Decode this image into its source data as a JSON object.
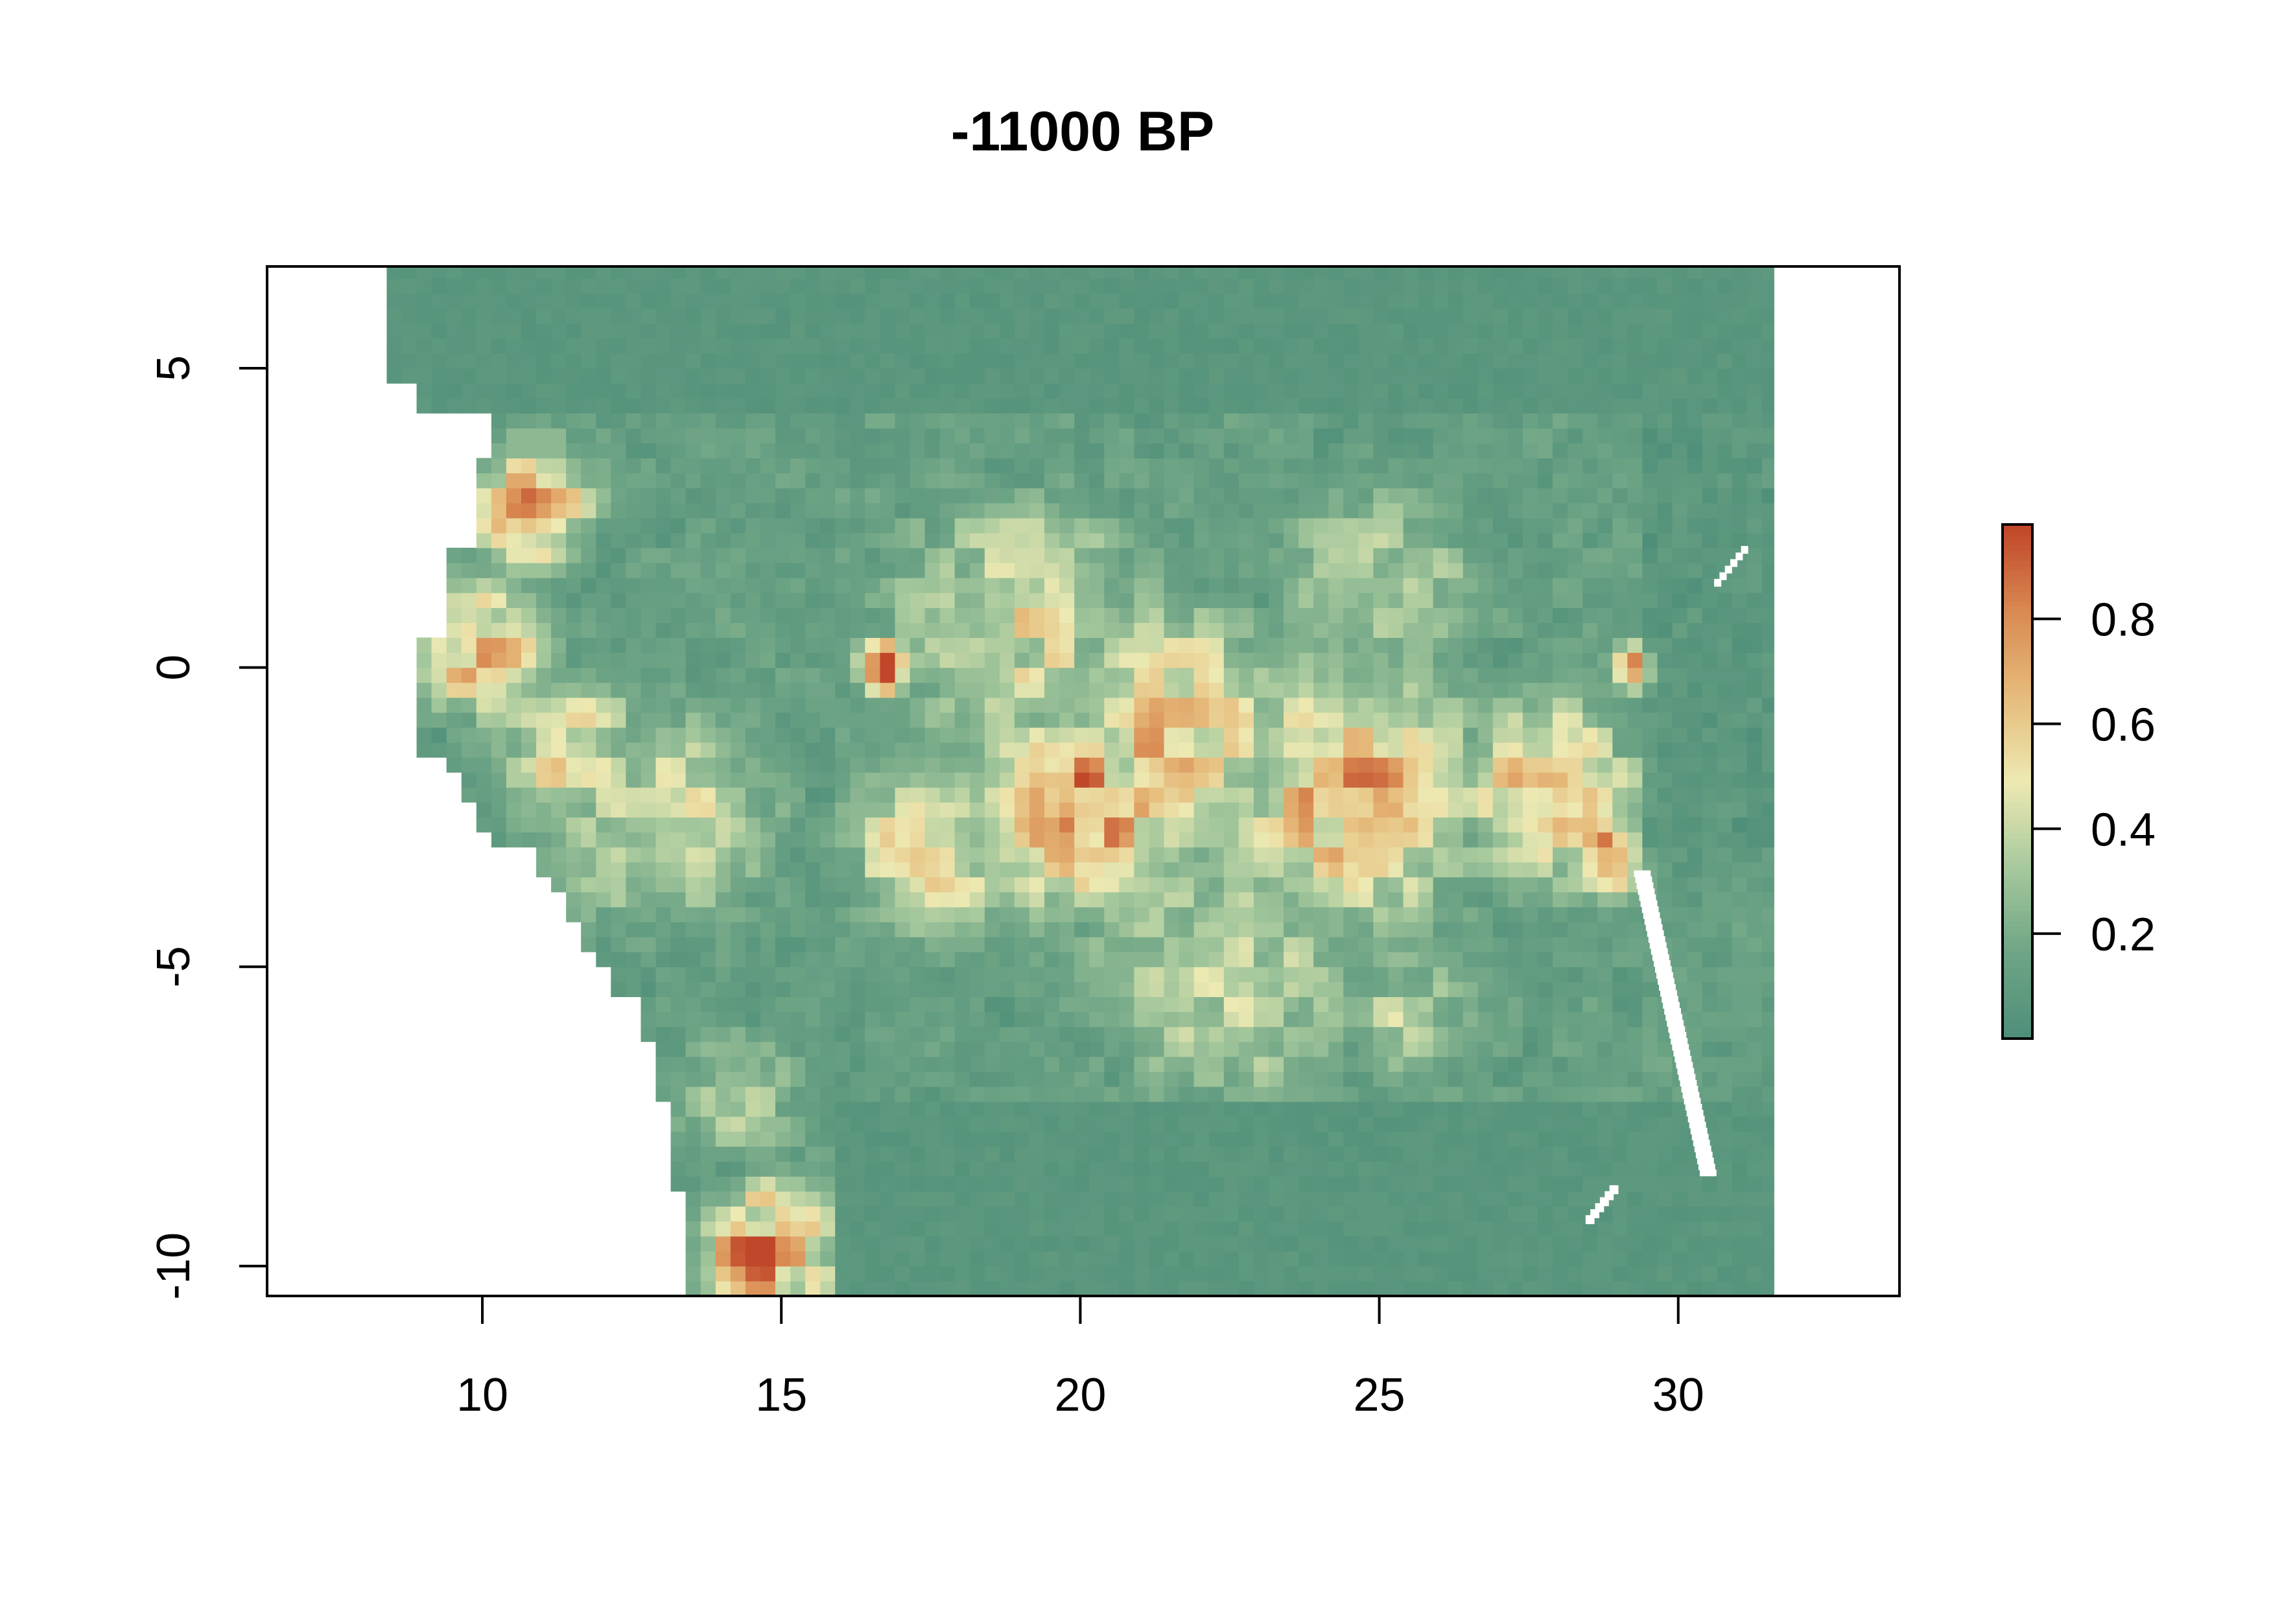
{
  "chart_data": {
    "type": "heatmap",
    "title": "-11000 BP",
    "xlabel": "",
    "ylabel": "",
    "xlim": [
      6.4,
      33.7
    ],
    "ylim": [
      -10.5,
      6.7
    ],
    "x_ticks": [
      "10",
      "15",
      "20",
      "25",
      "30"
    ],
    "y_ticks": [
      "5",
      "0",
      "-5",
      "-10"
    ],
    "legend": {
      "placement": "right",
      "ticks": [
        "0.2",
        "0.4",
        "0.6",
        "0.8"
      ],
      "range": [
        0.0,
        0.98
      ],
      "colors": [
        "#4f8f79",
        "#6fa586",
        "#a7c99d",
        "#ede9b2",
        "#e6bc7c",
        "#d98a52",
        "#c0472a"
      ]
    },
    "grid": false,
    "raster_extent": {
      "xmin": 8.4,
      "xmax": 31.6,
      "ymin": -10.5,
      "ymax": 6.7
    },
    "value_centers": [
      {
        "x": 10.8,
        "y": 2.8,
        "v": 0.85,
        "r": 1.0
      },
      {
        "x": 10.0,
        "y": 0.3,
        "v": 0.72,
        "r": 1.1
      },
      {
        "x": 14.8,
        "y": -9.8,
        "v": 0.9,
        "r": 1.1
      },
      {
        "x": 16.8,
        "y": 0.0,
        "v": 0.9,
        "r": 0.5
      },
      {
        "x": 20.0,
        "y": -2.4,
        "v": 0.85,
        "r": 1.6
      },
      {
        "x": 21.5,
        "y": -1.0,
        "v": 0.65,
        "r": 2.0
      },
      {
        "x": 24.5,
        "y": -2.0,
        "v": 0.7,
        "r": 2.2
      },
      {
        "x": 19.0,
        "y": 0.7,
        "v": 0.5,
        "r": 2.2
      },
      {
        "x": 27.8,
        "y": -2.0,
        "v": 0.7,
        "r": 1.5
      },
      {
        "x": 28.8,
        "y": -3.2,
        "v": 0.85,
        "r": 0.6
      },
      {
        "x": 29.3,
        "y": 0.0,
        "v": 0.8,
        "r": 0.4
      },
      {
        "x": 13.0,
        "y": -2.5,
        "v": 0.45,
        "r": 2.0
      },
      {
        "x": 22.5,
        "y": -5.0,
        "v": 0.42,
        "r": 2.5
      },
      {
        "x": 25.5,
        "y": -5.8,
        "v": 0.4,
        "r": 1.2
      },
      {
        "x": 11.5,
        "y": -1.5,
        "v": 0.5,
        "r": 1.5
      },
      {
        "x": 17.5,
        "y": -3.0,
        "v": 0.55,
        "r": 1.5
      },
      {
        "x": 14.3,
        "y": -7.2,
        "v": 0.35,
        "r": 1.2
      },
      {
        "x": 25.0,
        "y": 1.5,
        "v": 0.35,
        "r": 2.0
      }
    ],
    "missing_areas": [
      "Lake Tanganyika (white band near x 29-30.5, y -3.5 to -8.5)",
      "Lake Mweru (white near x 28.6, y -9)",
      "Lake Albert/Edward (white near x 30.6, y 1.5)"
    ]
  }
}
